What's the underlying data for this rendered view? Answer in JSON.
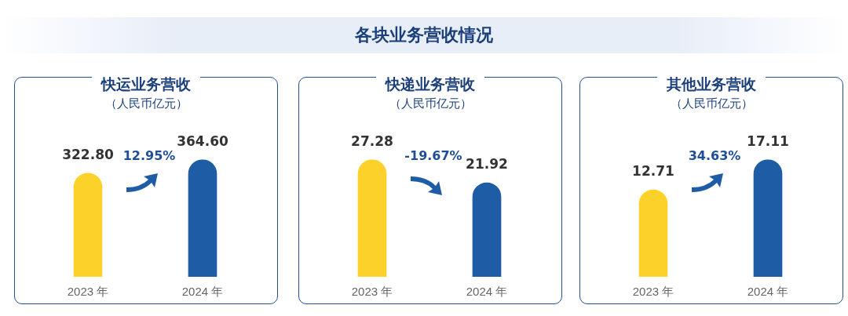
{
  "chart_data": [
    {
      "type": "bar",
      "title": "快运业务营收",
      "subtitle": "（人民币亿元）",
      "categories": [
        "2023 年",
        "2024 年"
      ],
      "values": [
        322.8,
        364.6
      ],
      "value_labels": [
        "322.80",
        "364.60"
      ],
      "colors": [
        "#fcd22a",
        "#1f5ca6"
      ],
      "tick_labels": "x",
      "annotations": [
        "各块业务营收情况",
        "12.95%"
      ]
    },
    {
      "type": "bar",
      "title": "快递业务营收",
      "subtitle": "（人民币亿元）",
      "categories": [
        "2023 年",
        "2024 年"
      ],
      "values": [
        27.28,
        21.92
      ],
      "value_labels": [
        "27.28",
        "21.92"
      ],
      "colors": [
        "#fcd22a",
        "#1f5ca6"
      ],
      "tick_labels": "x",
      "annotations": [
        "-19.67%"
      ]
    },
    {
      "type": "bar",
      "title": "其他业务营收",
      "subtitle": "（人民币亿元）",
      "categories": [
        "2023 年",
        "2024 年"
      ],
      "values": [
        12.71,
        17.11
      ],
      "value_labels": [
        "12.71",
        "17.11"
      ],
      "colors": [
        "#fcd22a",
        "#1f5ca6"
      ],
      "tick_labels": "x",
      "annotations": [
        "34.63%"
      ]
    }
  ]
}
